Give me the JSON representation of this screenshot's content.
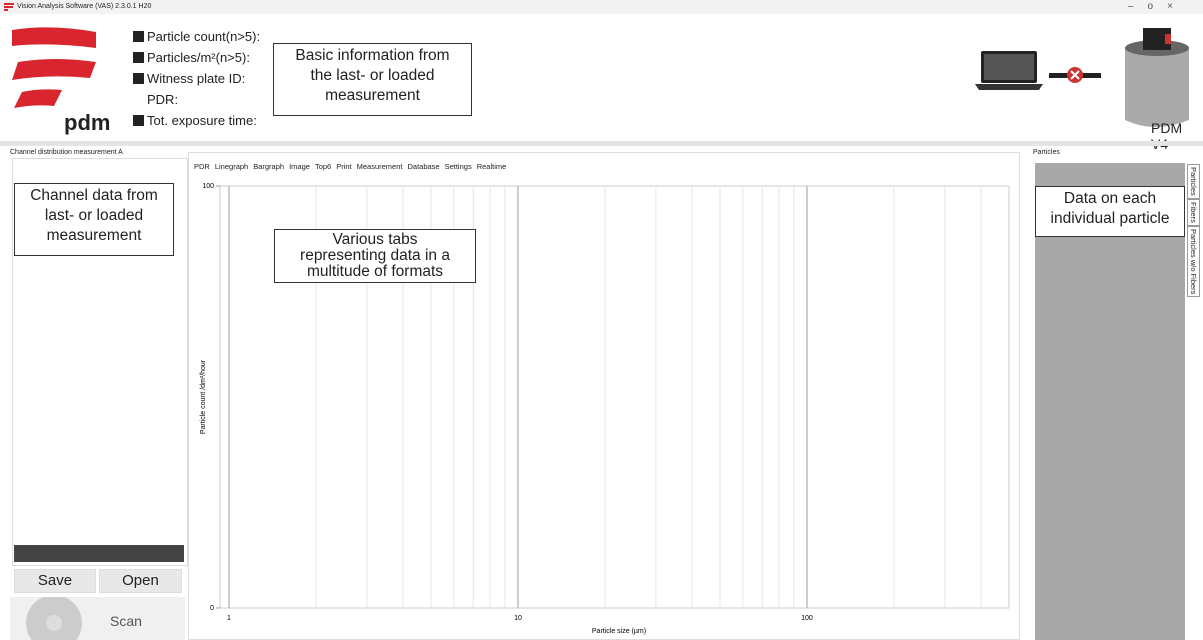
{
  "window": {
    "title": "Vision Analysis Software (VAS) 2.3.0.1 H20"
  },
  "header": {
    "logo_text": "pdm",
    "device_name": "PDM V4",
    "fields": [
      "Particle count(n>5):",
      "Particles/m²(n>5):",
      "Witness plate ID:",
      "PDR:",
      "Tot. exposure time:"
    ]
  },
  "left_panel": {
    "title": "Channel distribution measurement A",
    "buttons": [
      "Save",
      "Open",
      "Scan"
    ]
  },
  "tabs": [
    "PDR",
    "Linegraph",
    "Bargraph",
    "Image",
    "Top6",
    "Print",
    "Measurement",
    "Database",
    "Settings",
    "Realtime"
  ],
  "plot": {
    "x_label": "Particle size (µm)",
    "y_label": "Particle count /dm²/hour",
    "x_log": true,
    "xlim": [
      1,
      500
    ],
    "ylim": [
      0,
      100
    ],
    "xticks": [
      1,
      10,
      100
    ],
    "yticks": [
      0,
      100
    ],
    "x_minor_ticks": [
      2,
      3,
      4,
      5,
      6,
      7,
      8,
      9,
      20,
      30,
      40,
      50,
      60,
      70,
      80,
      90,
      200,
      300,
      400
    ]
  },
  "right_panel": {
    "title": "Particles",
    "side_tabs": [
      "Particles",
      "Fibers",
      "Particles w/o Fibers"
    ]
  },
  "annotations": [
    {
      "lines": [
        "Basic information from",
        "the last- or loaded",
        "measurement"
      ]
    },
    {
      "lines": [
        "Channel data from",
        "last- or loaded",
        "measurement"
      ]
    },
    {
      "lines": [
        "Various tabs",
        "representing data in a",
        "multitude of formats"
      ]
    },
    {
      "lines": [
        "Data on each",
        "individual particle"
      ]
    }
  ]
}
